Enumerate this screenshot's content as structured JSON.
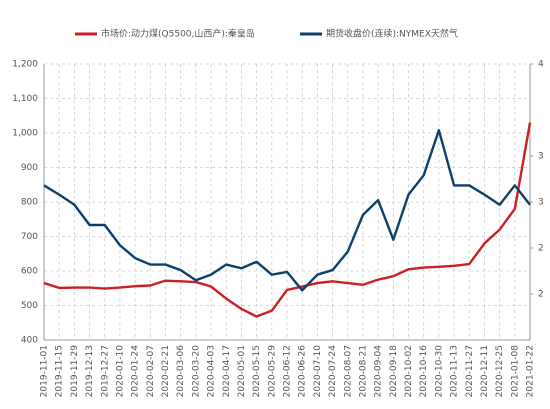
{
  "chart_data": {
    "type": "line",
    "categories": [
      "2019-11-01",
      "2019-11-15",
      "2019-11-29",
      "2019-12-13",
      "2019-12-27",
      "2020-01-10",
      "2020-01-24",
      "2020-02-07",
      "2020-02-21",
      "2020-03-06",
      "2020-03-20",
      "2020-04-03",
      "2020-04-17",
      "2020-05-01",
      "2020-05-15",
      "2020-05-29",
      "2020-06-12",
      "2020-06-26",
      "2020-07-10",
      "2020-07-24",
      "2020-08-07",
      "2020-08-21",
      "2020-09-04",
      "2020-09-18",
      "2020-10-02",
      "2020-10-16",
      "2020-10-30",
      "2020-11-13",
      "2020-11-27",
      "2020-12-11",
      "2020-12-25",
      "2021-01-08",
      "2021-01-22"
    ],
    "series": [
      {
        "name": "市场价:动力煤(Q5500,山西产):秦皇岛",
        "color": "#cc1f25",
        "values": [
          565,
          551,
          552,
          552,
          549,
          552,
          556,
          558,
          572,
          570,
          568,
          555,
          520,
          490,
          468,
          485,
          545,
          555,
          565,
          570,
          565,
          560,
          575,
          585,
          605,
          610,
          612,
          615,
          620,
          680,
          720,
          780,
          1030
        ]
      },
      {
        "name": "期货收盘价(连续):NYMEX天然气",
        "color": "#0d3f6e",
        "axis": "y2",
        "values": [
          2.68,
          2.58,
          2.47,
          2.25,
          2.25,
          2.03,
          1.89,
          1.82,
          1.82,
          1.76,
          1.65,
          1.71,
          1.82,
          1.78,
          1.85,
          1.71,
          1.74,
          1.54,
          1.71,
          1.76,
          1.96,
          2.36,
          2.52,
          2.09,
          2.58,
          2.79,
          3.28,
          2.68,
          2.68,
          2.58,
          2.47,
          2.68,
          2.47
        ]
      }
    ],
    "ylim": [
      400,
      1200
    ],
    "yticks": [
      400,
      500,
      600,
      700,
      800,
      900,
      {
        "value": 1000,
        "label": "1,000"
      },
      {
        "value": 1100,
        "label": "1,100"
      },
      {
        "value": 1200,
        "label": "1,200"
      }
    ],
    "y2lim": [
      1,
      4
    ],
    "y2ticks": [
      {
        "value": 1.5,
        "label": "2"
      },
      2,
      {
        "value": 2.5,
        "label": "3"
      },
      3,
      4
    ],
    "grid": true
  }
}
